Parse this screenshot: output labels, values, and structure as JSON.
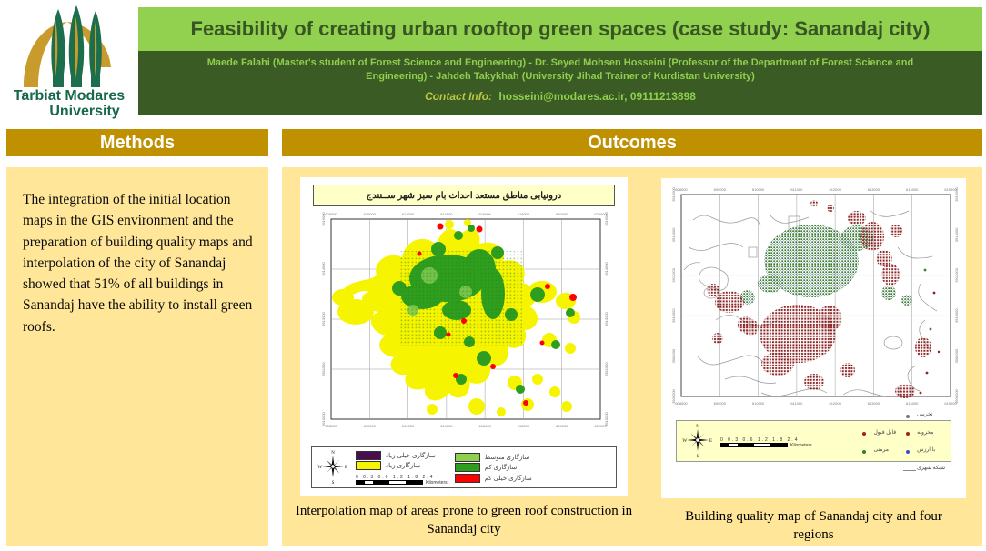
{
  "colors": {
    "light_green": "#92d050",
    "dark_green_band": "#3a5b23",
    "title_text": "#375623",
    "gold": "#bf9000",
    "panel_yellow": "#ffe699",
    "map_title_cream": "#ffffc8"
  },
  "header": {
    "logo_line1": "Tarbiat Modares",
    "logo_line2": "University",
    "title": "Feasibility of creating urban rooftop green spaces (case study: Sanandaj city)",
    "authors": "Maede Falahi (Master's student of Forest Science and Engineering) - Dr. Seyed Mohsen Hosseini (Professor of the Department of Forest Science and Engineering) - Jahdeh Takykhah (University Jihad Trainer of Kurdistan University)",
    "contact_label": "Contact Info:",
    "contact_value": "hosseini@modares.ac.ir, 09111213898"
  },
  "sections": {
    "methods_title": "Methods",
    "outcomes_title": "Outcomes",
    "methods_body": "The integration of the initial location maps in the GIS environment and the preparation of building quality maps and interpolation of the city of Sanandaj showed that 51% of all buildings in Sanandaj have the ability to install green roofs."
  },
  "compass": {
    "n": "N",
    "e": "E",
    "s": "S",
    "w": "W"
  },
  "scale": {
    "numbers": "0 0.3 0.6  1.2  1.8  2.4",
    "unit": "Kilometers"
  },
  "map1": {
    "title_fa": "درونیابی مناطق مستعد احداث بام سبز شهر ســنندج",
    "caption": "Interpolation map of areas prone to green roof construction in Sanandaj city",
    "x_ticks": [
      "608000",
      "610000",
      "612000",
      "614000",
      "616000",
      "618000",
      "620000",
      "622000"
    ],
    "y_ticks": [
      "3916000",
      "3914500",
      "3913000",
      "3911500",
      "3910000"
    ],
    "legend_left": [
      {
        "color": "#4a0d4d",
        "label": "سازگاری خیلی زیاد"
      },
      {
        "color": "#f7f400",
        "label": "سازگاری زیاد"
      }
    ],
    "legend_right": [
      {
        "color": "#8fd14f",
        "label": "سازگاری متوسط"
      },
      {
        "color": "#2f9e1e",
        "label": "سازگاری کم"
      },
      {
        "color": "#fe0000",
        "label": "سازگاری خیلی کم"
      }
    ]
  },
  "map2": {
    "caption": "Building quality map of Sanandaj city and four regions",
    "x_ticks": [
      "608000",
      "609000",
      "610000",
      "611000",
      "612000",
      "613000",
      "614000",
      "615000"
    ],
    "y_ticks": [
      "3916000",
      "3914000",
      "3912000",
      "3910000",
      "3908000",
      "3906000"
    ],
    "legend_col1": [
      {
        "symbol": "dot-red",
        "label": "قابل قبول"
      },
      {
        "symbol": "dot-green",
        "label": "مرمتی"
      }
    ],
    "legend_col2": [
      {
        "symbol": "dot-gray",
        "label": "تخریبی"
      },
      {
        "symbol": "dot-red",
        "label": "مخروبه"
      },
      {
        "symbol": "dot-blue",
        "label": "با ارزش"
      },
      {
        "symbol": "line",
        "label": "شبکه شهری"
      }
    ]
  }
}
